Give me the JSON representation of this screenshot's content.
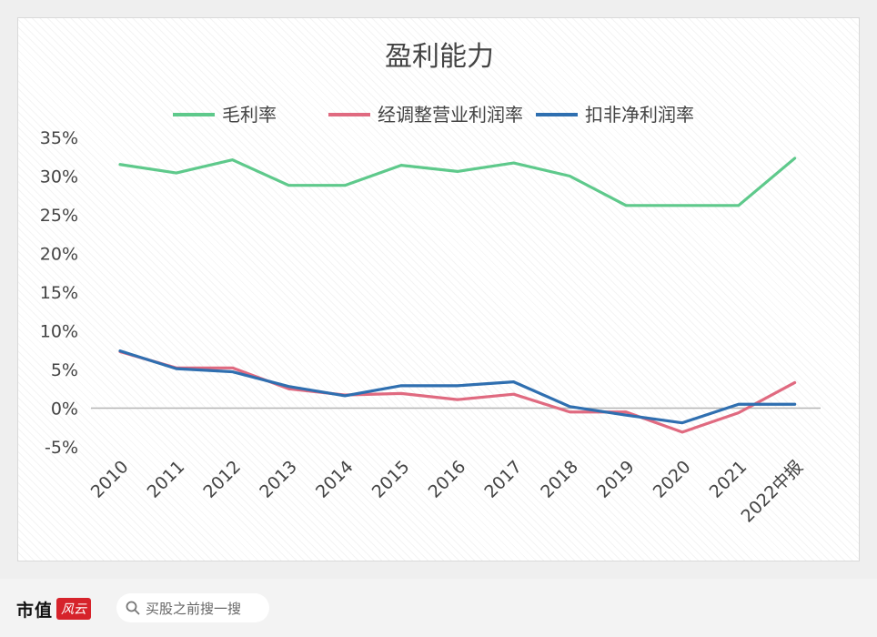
{
  "chart_data": {
    "type": "line",
    "title": "盈利能力",
    "categories": [
      "2010",
      "2011",
      "2012",
      "2013",
      "2014",
      "2015",
      "2016",
      "2017",
      "2018",
      "2019",
      "2020",
      "2021",
      "2022中报"
    ],
    "ylim": [
      -5,
      35
    ],
    "yticks": [
      "35%",
      "30%",
      "25%",
      "20%",
      "15%",
      "10%",
      "5%",
      "0%",
      "-5%"
    ],
    "grid": false,
    "legend": "top",
    "series": [
      {
        "name": "毛利率",
        "color": "#5ec98b",
        "values": [
          31.5,
          30.4,
          32.1,
          28.8,
          28.8,
          31.4,
          30.6,
          31.7,
          30.0,
          26.2,
          26.2,
          26.2,
          32.3
        ]
      },
      {
        "name": "经调整营业利润率",
        "color": "#e06a80",
        "values": [
          7.3,
          5.2,
          5.2,
          2.5,
          1.7,
          1.9,
          1.1,
          1.8,
          -0.5,
          -0.5,
          -3.1,
          -0.6,
          3.3
        ]
      },
      {
        "name": "扣非净利润率",
        "color": "#2f6fb0",
        "values": [
          7.4,
          5.1,
          4.7,
          2.8,
          1.6,
          2.9,
          2.9,
          3.4,
          0.2,
          -0.9,
          -1.9,
          0.5,
          0.5
        ]
      }
    ]
  },
  "footer": {
    "brand": "市值",
    "brand_mark": "风云",
    "search_text": "买股之前搜一搜"
  }
}
